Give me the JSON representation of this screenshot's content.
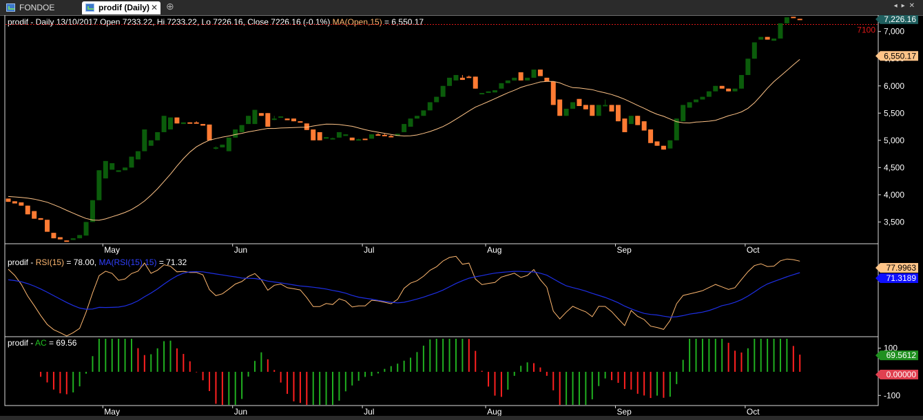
{
  "tabs": [
    {
      "label": "FONDOE (Daily)",
      "active": false
    },
    {
      "label": "prodif (Daily)",
      "active": true
    }
  ],
  "colors": {
    "up": "#0b5c0b",
    "down": "#ff7b33",
    "ma_price": "#ffc488",
    "rsi": "#ffb870",
    "rsi_ma": "#1e2fe6",
    "ac_up": "#20b020",
    "ac_down": "#ff2020",
    "refline": "#e01818",
    "last_price_bg": "#1f5f5f"
  },
  "chart_data": [
    {
      "type": "candlestick",
      "title_prefix": "prodif - Daily 13/10/2017 Open 7233.22, Hi 7233.22, Lo 7226.16, Close 7226.16 (-0.1%)",
      "ma_label": "MA(Open,15)",
      "ma_value_text": "= 6,550.17",
      "price_badge": "7,226.16",
      "ma_badge": "6,550.17",
      "ref_line": {
        "value": 7130,
        "label": "7100"
      },
      "ylim": [
        3100,
        7300
      ],
      "yticks": [
        3500,
        4000,
        4500,
        5000,
        5500,
        6000,
        6500,
        7000
      ],
      "ytick_labels": [
        "3,500",
        "4,000",
        "4,500",
        "5,000",
        "5,500",
        "6,000",
        "6,500",
        "7,000"
      ],
      "months": [
        {
          "label": "May",
          "index": 15
        },
        {
          "label": "Jun",
          "index": 35
        },
        {
          "label": "Jul",
          "index": 55
        },
        {
          "label": "Aug",
          "index": 74
        },
        {
          "label": "Sep",
          "index": 94
        },
        {
          "label": "Oct",
          "index": 114
        }
      ],
      "candles": [
        [
          3930,
          3920,
          3870,
          3870
        ],
        [
          3880,
          3880,
          3840,
          3840
        ],
        [
          3860,
          3860,
          3800,
          3800
        ],
        [
          3800,
          3800,
          3640,
          3640
        ],
        [
          3700,
          3700,
          3560,
          3560
        ],
        [
          3570,
          3570,
          3540,
          3540
        ],
        [
          3540,
          3540,
          3320,
          3320
        ],
        [
          3300,
          3300,
          3200,
          3200
        ],
        [
          3220,
          3220,
          3180,
          3180
        ],
        [
          3160,
          3160,
          3140,
          3140
        ],
        [
          3170,
          3200,
          3170,
          3200
        ],
        [
          3200,
          3260,
          3200,
          3260
        ],
        [
          3250,
          3500,
          3250,
          3500
        ],
        [
          3500,
          3900,
          3500,
          3900
        ],
        [
          3900,
          4450,
          3900,
          4450
        ],
        [
          4300,
          4620,
          4300,
          4620
        ],
        [
          4460,
          4580,
          4460,
          4580
        ],
        [
          4420,
          4450,
          4420,
          4450
        ],
        [
          4450,
          4500,
          4450,
          4500
        ],
        [
          4500,
          4700,
          4500,
          4700
        ],
        [
          4650,
          4800,
          4650,
          4800
        ],
        [
          4800,
          5200,
          4800,
          5200
        ],
        [
          4900,
          5000,
          4900,
          5000
        ],
        [
          5000,
          5150,
          5000,
          5150
        ],
        [
          5150,
          5450,
          5150,
          5450
        ],
        [
          5200,
          5420,
          5200,
          5420
        ],
        [
          5420,
          5420,
          5310,
          5310
        ],
        [
          5300,
          5330,
          5300,
          5330
        ],
        [
          5330,
          5330,
          5310,
          5310
        ],
        [
          5330,
          5350,
          5310,
          5310
        ],
        [
          5300,
          5300,
          5270,
          5270
        ],
        [
          5290,
          5290,
          5000,
          5000
        ],
        [
          4850,
          4890,
          4830,
          4870
        ],
        [
          4870,
          4920,
          4870,
          4920
        ],
        [
          4800,
          5050,
          4800,
          5050
        ],
        [
          5050,
          5200,
          5050,
          5200
        ],
        [
          5150,
          5280,
          5150,
          5280
        ],
        [
          5300,
          5450,
          5300,
          5450
        ],
        [
          5300,
          5560,
          5300,
          5560
        ],
        [
          5500,
          5500,
          5450,
          5450
        ],
        [
          5500,
          5500,
          5250,
          5250
        ],
        [
          5400,
          5450,
          5370,
          5400
        ],
        [
          5420,
          5440,
          5420,
          5440
        ],
        [
          5400,
          5400,
          5370,
          5370
        ],
        [
          5400,
          5400,
          5350,
          5350
        ],
        [
          5350,
          5350,
          5330,
          5330
        ],
        [
          5310,
          5310,
          5190,
          5190
        ],
        [
          5200,
          5200,
          5000,
          5000
        ],
        [
          5150,
          5150,
          5000,
          5000
        ],
        [
          5030,
          5060,
          5030,
          5060
        ],
        [
          5030,
          5050,
          5030,
          5040
        ],
        [
          5050,
          5150,
          5050,
          5150
        ],
        [
          5080,
          5110,
          5080,
          5110
        ],
        [
          5050,
          5050,
          5000,
          5000
        ],
        [
          5020,
          5030,
          5010,
          5020
        ],
        [
          5030,
          5030,
          5020,
          5020
        ],
        [
          5030,
          5110,
          5030,
          5110
        ],
        [
          5110,
          5130,
          5100,
          5100
        ],
        [
          5100,
          5120,
          5080,
          5080
        ],
        [
          5080,
          5100,
          5060,
          5060
        ],
        [
          5080,
          5120,
          5080,
          5120
        ],
        [
          5150,
          5300,
          5150,
          5300
        ],
        [
          5250,
          5400,
          5250,
          5400
        ],
        [
          5400,
          5450,
          5400,
          5450
        ],
        [
          5450,
          5550,
          5450,
          5550
        ],
        [
          5550,
          5700,
          5550,
          5700
        ],
        [
          5700,
          5800,
          5700,
          5800
        ],
        [
          5800,
          6000,
          5800,
          6000
        ],
        [
          6000,
          6150,
          6000,
          6150
        ],
        [
          6100,
          6200,
          6100,
          6200
        ],
        [
          6150,
          6200,
          6110,
          6110
        ],
        [
          6170,
          6190,
          6150,
          6150
        ],
        [
          6170,
          6170,
          5950,
          5950
        ],
        [
          5850,
          5870,
          5850,
          5870
        ],
        [
          5870,
          5900,
          5870,
          5900
        ],
        [
          5880,
          5920,
          5880,
          5920
        ],
        [
          5950,
          6050,
          5950,
          6050
        ],
        [
          6050,
          6100,
          6050,
          6100
        ],
        [
          6100,
          6150,
          6100,
          6150
        ],
        [
          6250,
          6250,
          6100,
          6100
        ],
        [
          6100,
          6150,
          6100,
          6150
        ],
        [
          6150,
          6300,
          6150,
          6300
        ],
        [
          6300,
          6300,
          6180,
          6180
        ],
        [
          6150,
          6150,
          6080,
          6080
        ],
        [
          6080,
          6080,
          5650,
          5650
        ],
        [
          5750,
          5750,
          5450,
          5450
        ],
        [
          5450,
          5580,
          5450,
          5580
        ],
        [
          5580,
          5700,
          5580,
          5700
        ],
        [
          5760,
          5760,
          5630,
          5630
        ],
        [
          5650,
          5650,
          5570,
          5570
        ],
        [
          5650,
          5650,
          5450,
          5450
        ],
        [
          5450,
          5650,
          5450,
          5650
        ],
        [
          5650,
          5750,
          5650,
          5650
        ],
        [
          5650,
          5650,
          5530,
          5530
        ],
        [
          5650,
          5650,
          5350,
          5350
        ],
        [
          5400,
          5400,
          5150,
          5150
        ],
        [
          5300,
          5450,
          5300,
          5450
        ],
        [
          5450,
          5450,
          5280,
          5280
        ],
        [
          5350,
          5350,
          5180,
          5180
        ],
        [
          5200,
          5200,
          4950,
          4950
        ],
        [
          4980,
          4980,
          4900,
          4900
        ],
        [
          4900,
          4900,
          4830,
          4830
        ],
        [
          4850,
          5000,
          4850,
          5000
        ],
        [
          5000,
          5400,
          5000,
          5400
        ],
        [
          5350,
          5650,
          5350,
          5650
        ],
        [
          5600,
          5700,
          5600,
          5700
        ],
        [
          5700,
          5750,
          5700,
          5750
        ],
        [
          5750,
          5800,
          5750,
          5800
        ],
        [
          5800,
          5900,
          5800,
          5900
        ],
        [
          5900,
          6000,
          5900,
          6000
        ],
        [
          6000,
          6000,
          5950,
          5950
        ],
        [
          5950,
          5950,
          5900,
          5900
        ],
        [
          5900,
          5950,
          5900,
          5950
        ],
        [
          5950,
          6200,
          5950,
          6200
        ],
        [
          6200,
          6500,
          6200,
          6500
        ],
        [
          6500,
          6800,
          6500,
          6800
        ],
        [
          6850,
          6900,
          6850,
          6900
        ],
        [
          6900,
          6900,
          6850,
          6850
        ],
        [
          6830,
          6870,
          6830,
          6870
        ],
        [
          6870,
          7150,
          6870,
          7150
        ],
        [
          7150,
          7260,
          7150,
          7260
        ],
        [
          7270,
          7270,
          7250,
          7250
        ],
        [
          7233,
          7233,
          7226,
          7226
        ]
      ]
    },
    {
      "type": "line",
      "title_prefix": "prodif -",
      "rsi_label": "RSI(15)",
      "rsi_value_text": "= 78.00,",
      "ma_label": "MA(RSI(15),15)",
      "ma_value_text": "= 71.32",
      "rsi_badge": "77.9963",
      "ma_badge": "71.3189",
      "ylim": [
        28,
        85
      ]
    },
    {
      "type": "bar",
      "title_prefix": "prodif -",
      "label": "AC",
      "value_text": "= 69.56",
      "badge_pos": "69.5612",
      "badge_zero": "0.00000",
      "ylim": [
        -140,
        140
      ],
      "yticks": [
        100,
        -100
      ],
      "ytick_labels": [
        "100",
        "-100"
      ]
    }
  ]
}
